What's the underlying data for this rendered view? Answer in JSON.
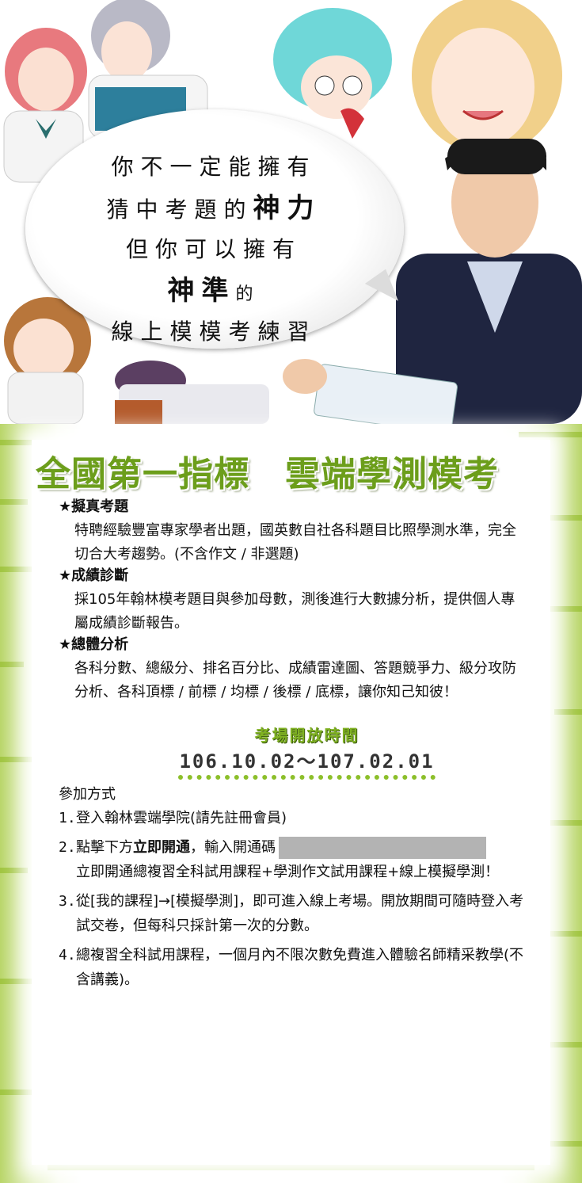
{
  "bubble": {
    "line1": "你不一定能擁有",
    "line2_pre": "猜中考題的",
    "line2_em": "神力",
    "line3": "但你可以擁有",
    "line4_em": "神準",
    "line4_post": "的",
    "line5": "線上模模考練習"
  },
  "main_title": "全國第一指標　雲端學測模考",
  "sections": [
    {
      "heading": "★擬真考題",
      "body": "特聘經驗豐富專家學者出題，國英數自社各科題目比照學測水準，完全切合大考趨勢。(不含作文 / 非選題)"
    },
    {
      "heading": "★成績診斷",
      "body": "採105年翰林模考題目與參加母數，測後進行大數據分析，提供個人專屬成績診斷報告。"
    },
    {
      "heading": "★總體分析",
      "body": "各科分數、總級分、排名百分比、成績雷達圖、答題競爭力、級分攻防分析、各科頂標 / 前標 / 均標 / 後標 / 底標，讓你知己知彼！"
    }
  ],
  "period": {
    "label": "考場開放時間",
    "dates": "106.10.02～107.02.01"
  },
  "join": {
    "title": "參加方式",
    "steps": [
      {
        "num": "1.",
        "text": "登入翰林雲端學院(請先註冊會員)"
      },
      {
        "num": "2.",
        "pre": "點擊下方",
        "bold": "立即開通",
        "post": "，輸入開通碼",
        "cont": "立即開通總複習全科試用課程+學測作文試用課程+線上模擬學測！"
      },
      {
        "num": "3.",
        "text": "從[我的課程]→[模擬學測]，即可進入線上考場。開放期間可隨時登入考試交卷，但每科只採計第一次的分數。"
      },
      {
        "num": "4.",
        "text": "總複習全科試用課程，一個月內不限次數免費進入體驗名師精采教學(不含講義)。"
      }
    ]
  }
}
